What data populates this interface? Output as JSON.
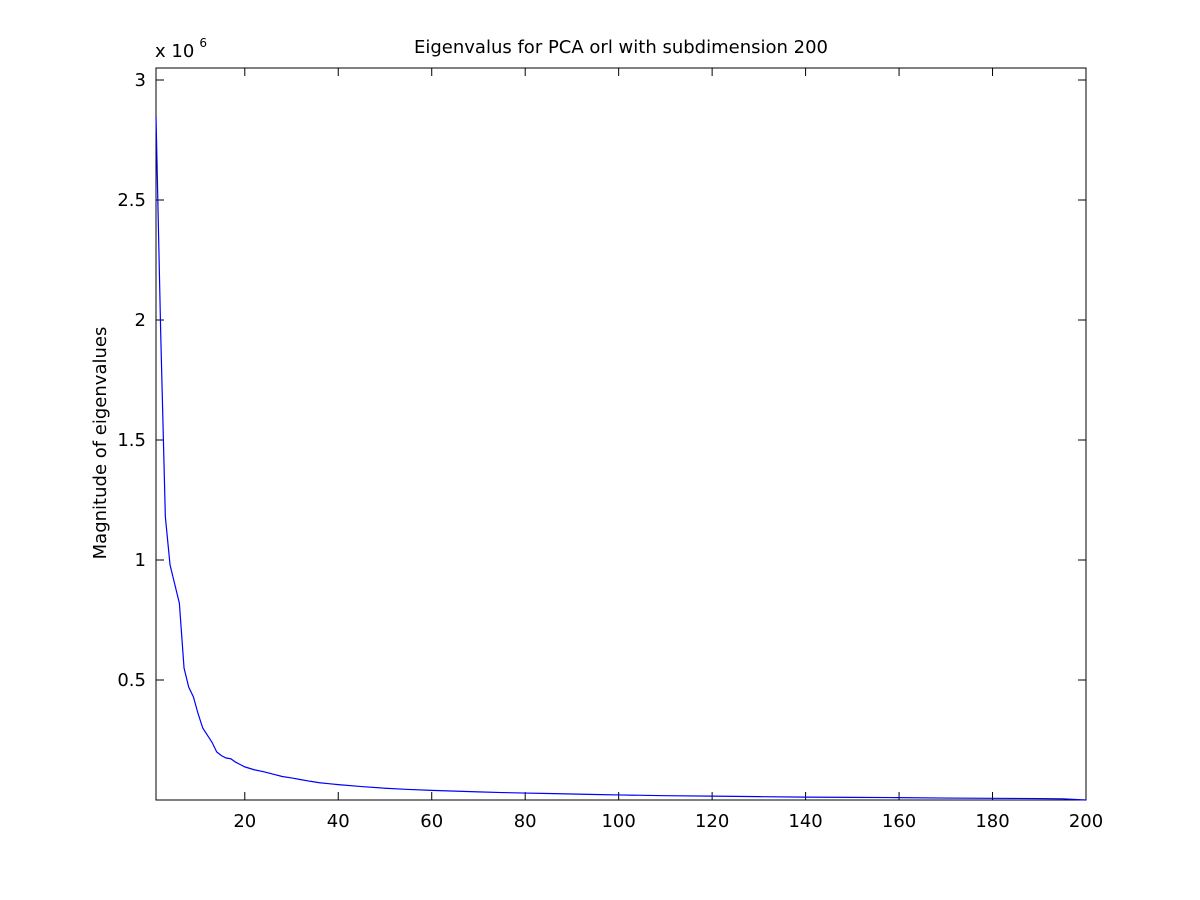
{
  "chart_data": {
    "type": "line",
    "title": "Eigenvalus for PCA orl with subdimension 200",
    "xlabel": "",
    "ylabel": "Magnitude of eigenvalues",
    "y_multiplier": {
      "base": "x 10",
      "exponent": "6"
    },
    "xlim": [
      1,
      200
    ],
    "ylim": [
      0,
      3.05
    ],
    "x_ticks": [
      20,
      40,
      60,
      80,
      100,
      120,
      140,
      160,
      180,
      200
    ],
    "x_tick_labels": [
      "20",
      "40",
      "60",
      "80",
      "100",
      "120",
      "140",
      "160",
      "180",
      "200"
    ],
    "y_ticks": [
      0.5,
      1,
      1.5,
      2,
      2.5,
      3
    ],
    "y_tick_labels": [
      "0.5",
      "1",
      "1.5",
      "2",
      "2.5",
      "3"
    ],
    "grid": false,
    "colors": {
      "line": "#0000ff",
      "axes": "#000000",
      "background": "#ffffff"
    },
    "series": [
      {
        "points": [
          [
            1,
            2.85
          ],
          [
            2,
            1.95
          ],
          [
            3,
            1.18
          ],
          [
            4,
            0.98
          ],
          [
            5,
            0.9
          ],
          [
            6,
            0.82
          ],
          [
            7,
            0.55
          ],
          [
            8,
            0.47
          ],
          [
            9,
            0.43
          ],
          [
            10,
            0.36
          ],
          [
            11,
            0.3
          ],
          [
            12,
            0.27
          ],
          [
            13,
            0.24
          ],
          [
            14,
            0.2
          ],
          [
            15,
            0.185
          ],
          [
            16,
            0.175
          ],
          [
            17,
            0.172
          ],
          [
            18,
            0.158
          ],
          [
            19,
            0.148
          ],
          [
            20,
            0.138
          ],
          [
            22,
            0.126
          ],
          [
            24,
            0.118
          ],
          [
            26,
            0.108
          ],
          [
            28,
            0.098
          ],
          [
            30,
            0.092
          ],
          [
            32,
            0.085
          ],
          [
            34,
            0.078
          ],
          [
            36,
            0.072
          ],
          [
            38,
            0.068
          ],
          [
            40,
            0.064
          ],
          [
            45,
            0.056
          ],
          [
            50,
            0.049
          ],
          [
            55,
            0.044
          ],
          [
            60,
            0.04
          ],
          [
            65,
            0.037
          ],
          [
            70,
            0.034
          ],
          [
            75,
            0.031
          ],
          [
            80,
            0.029
          ],
          [
            85,
            0.027
          ],
          [
            90,
            0.025
          ],
          [
            95,
            0.023
          ],
          [
            100,
            0.021
          ],
          [
            110,
            0.018
          ],
          [
            120,
            0.016
          ],
          [
            130,
            0.014
          ],
          [
            140,
            0.012
          ],
          [
            150,
            0.011
          ],
          [
            160,
            0.01
          ],
          [
            170,
            0.008
          ],
          [
            180,
            0.007
          ],
          [
            190,
            0.006
          ],
          [
            195,
            0.005
          ],
          [
            200,
            0.0
          ]
        ]
      }
    ]
  }
}
